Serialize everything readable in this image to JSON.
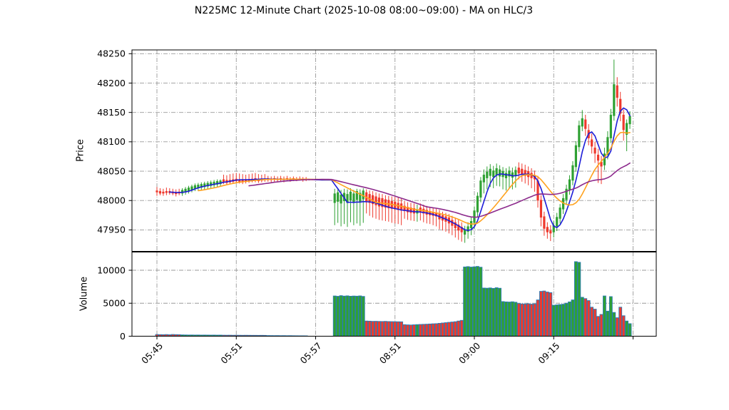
{
  "title": "N225MC 12-Minute Chart (2025-10-08 08:00~09:00) - MA on HLC/3",
  "chart_data": {
    "type": "candlestick_with_volume",
    "title": "N225MC 12-Minute Chart (2025-10-08 08:00~09:00) - MA on HLC/3",
    "grid": true,
    "price_axis": {
      "label": "Price",
      "ticks": [
        47950,
        48000,
        48050,
        48100,
        48150,
        48200,
        48250
      ],
      "range": [
        47913,
        48257
      ]
    },
    "volume_axis": {
      "label": "Volume",
      "ticks": [
        0,
        5000,
        10000
      ],
      "range": [
        0,
        12750
      ]
    },
    "x_axis": {
      "ticks": [
        {
          "index": 0,
          "label": "05:45"
        },
        {
          "index": 25,
          "label": "05:51"
        },
        {
          "index": 50,
          "label": "05:57"
        },
        {
          "index": 75,
          "label": "08:51"
        },
        {
          "index": 100,
          "label": "09:00"
        },
        {
          "index": 125,
          "label": "09:15"
        },
        {
          "index": 150,
          "label": ""
        }
      ]
    },
    "ma_source": "HLC/3",
    "moving_averages": [
      {
        "name": "ma-fast",
        "period": 5,
        "color": "#1d1dd8"
      },
      {
        "name": "ma-medium",
        "period": 14,
        "color": "#ffa21f"
      },
      {
        "name": "ma-slow",
        "period": 30,
        "color": "#8c2a8c"
      }
    ],
    "colors": {
      "up": "#2fa133",
      "down": "#ef392d",
      "doji": "#ef392d",
      "volume_edge": "#2b7bb5",
      "grid": "#9a9a9a",
      "spine": "#000000"
    },
    "candles_format": [
      "open",
      "high",
      "low",
      "close",
      "volume"
    ],
    "candles": [
      [
        48017,
        48023,
        48008,
        48014,
        260
      ],
      [
        48016,
        48021,
        48009,
        48012,
        240
      ],
      [
        48015,
        48020,
        48008,
        48012,
        230
      ],
      [
        48016,
        48022,
        48009,
        48013,
        250
      ],
      [
        48016,
        48021,
        48010,
        48013,
        220
      ],
      [
        48015,
        48020,
        48009,
        48012,
        260
      ],
      [
        48014,
        48019,
        48007,
        48011,
        240
      ],
      [
        48015,
        48020,
        48009,
        48012,
        230
      ],
      [
        48012,
        48021,
        48008,
        48018,
        200
      ],
      [
        48014,
        48023,
        48010,
        48020,
        190
      ],
      [
        48016,
        48025,
        48012,
        48022,
        180
      ],
      [
        48018,
        48027,
        48014,
        48024,
        185
      ],
      [
        48020,
        48029,
        48016,
        48026,
        175
      ],
      [
        48021,
        48030,
        48017,
        48027,
        180
      ],
      [
        48022,
        48031,
        48018,
        48028,
        170
      ],
      [
        48023,
        48032,
        48019,
        48029,
        175
      ],
      [
        48024,
        48033,
        48020,
        48030,
        170
      ],
      [
        48025,
        48034,
        48021,
        48031,
        165
      ],
      [
        48026,
        48035,
        48022,
        48032,
        170
      ],
      [
        48027,
        48036,
        48023,
        48033,
        160
      ],
      [
        48028,
        48036,
        48024,
        48034,
        165
      ],
      [
        48036,
        48044,
        48028,
        48031,
        150
      ],
      [
        48035,
        48043,
        48027,
        48030,
        145
      ],
      [
        48035,
        48045,
        48028,
        48031,
        150
      ],
      [
        48036,
        48046,
        48029,
        48032,
        140
      ],
      [
        48037,
        48047,
        48030,
        48033,
        145
      ],
      [
        48036,
        48046,
        48029,
        48032,
        140
      ],
      [
        48036,
        48045,
        48028,
        48031,
        135
      ],
      [
        48035,
        48044,
        48029,
        48032,
        140
      ],
      [
        48036,
        48045,
        48030,
        48033,
        135
      ],
      [
        48037,
        48046,
        48031,
        48034,
        130
      ],
      [
        48038,
        48047,
        48031,
        48034,
        130
      ],
      [
        48037,
        48045,
        48030,
        48033,
        125
      ],
      [
        48036,
        48044,
        48031,
        48034,
        130
      ],
      [
        48037,
        48045,
        48032,
        48035,
        125
      ],
      [
        48038,
        48042,
        48032,
        48036,
        90
      ],
      [
        48037,
        48041,
        48031,
        48035,
        85
      ],
      [
        48038,
        48042,
        48032,
        48036,
        80
      ],
      [
        48037,
        48041,
        48031,
        48035,
        85
      ],
      [
        48038,
        48042,
        48032,
        48036,
        75
      ],
      [
        48037,
        48041,
        48031,
        48035,
        80
      ],
      [
        48038,
        48042,
        48033,
        48036,
        70
      ],
      [
        48037,
        48040,
        48032,
        48035,
        75
      ],
      [
        48038,
        48041,
        48033,
        48036,
        65
      ],
      [
        48037,
        48040,
        48033,
        48035,
        60
      ],
      [
        48037,
        48041,
        48034,
        48036,
        55
      ],
      [
        48036,
        48040,
        48032,
        48035,
        55
      ],
      [
        48037,
        48040,
        48033,
        48036,
        50
      ],
      [
        48035,
        48035,
        48035,
        48035,
        0
      ],
      [
        48035,
        48035,
        48035,
        48035,
        0
      ],
      [
        48035,
        48035,
        48035,
        48035,
        0
      ],
      [
        48035,
        48035,
        48035,
        48035,
        0
      ],
      [
        48035,
        48035,
        48035,
        48035,
        0
      ],
      [
        48035,
        48035,
        48035,
        48035,
        0
      ],
      [
        48035,
        48035,
        48035,
        48035,
        0
      ],
      [
        48035,
        48035,
        48035,
        48035,
        0
      ],
      [
        47996,
        48020,
        47958,
        48012,
        6100
      ],
      [
        47998,
        48021,
        47962,
        48014,
        6050
      ],
      [
        47995,
        48018,
        47956,
        48010,
        6150
      ],
      [
        47999,
        48020,
        47960,
        48013,
        6080
      ],
      [
        47996,
        48019,
        47955,
        48011,
        6120
      ],
      [
        48000,
        48021,
        47963,
        48015,
        6060
      ],
      [
        47997,
        48018,
        47958,
        48012,
        6090
      ],
      [
        48001,
        48020,
        47961,
        48016,
        6070
      ],
      [
        47998,
        48019,
        47957,
        48013,
        6110
      ],
      [
        48002,
        48021,
        47962,
        48017,
        6030
      ],
      [
        48014,
        48019,
        47978,
        47998,
        2300
      ],
      [
        48011,
        48017,
        47974,
        47996,
        2280
      ],
      [
        48009,
        48016,
        47971,
        47994,
        2250
      ],
      [
        48007,
        48014,
        47969,
        47992,
        2260
      ],
      [
        48005,
        48012,
        47967,
        47990,
        2240
      ],
      [
        48004,
        48011,
        47966,
        47989,
        2230
      ],
      [
        48002,
        48009,
        47965,
        47988,
        2250
      ],
      [
        48001,
        48008,
        47964,
        47987,
        2220
      ],
      [
        47999,
        48007,
        47962,
        47986,
        2210
      ],
      [
        47998,
        48006,
        47961,
        47985,
        2200
      ],
      [
        47996,
        48005,
        47960,
        47984,
        2190
      ],
      [
        47995,
        48003,
        47958,
        47983,
        2180
      ],
      [
        47991,
        47999,
        47969,
        47982,
        1750
      ],
      [
        47989,
        47997,
        47967,
        47980,
        1720
      ],
      [
        47988,
        47996,
        47966,
        47979,
        1700
      ],
      [
        47987,
        47995,
        47965,
        47978,
        1730
      ],
      [
        47978,
        47993,
        47964,
        47984,
        1760
      ],
      [
        47988,
        47995,
        47966,
        47980,
        1780
      ],
      [
        47986,
        47993,
        47963,
        47978,
        1800
      ],
      [
        47984,
        47991,
        47961,
        47976,
        1820
      ],
      [
        47982,
        47989,
        47960,
        47975,
        1850
      ],
      [
        47980,
        47987,
        47958,
        47974,
        1880
      ],
      [
        47979,
        47986,
        47956,
        47973,
        1900
      ],
      [
        47977,
        47984,
        47951,
        47968,
        1950
      ],
      [
        47975,
        47981,
        47949,
        47966,
        2000
      ],
      [
        47973,
        47979,
        47947,
        47964,
        2050
      ],
      [
        47971,
        47977,
        47944,
        47961,
        2100
      ],
      [
        47967,
        47974,
        47941,
        47957,
        2150
      ],
      [
        47963,
        47971,
        47937,
        47953,
        2200
      ],
      [
        47959,
        47967,
        47933,
        47949,
        2300
      ],
      [
        47955,
        47963,
        47930,
        47946,
        2400
      ],
      [
        47942,
        47957,
        47928,
        47950,
        10500
      ],
      [
        47947,
        47963,
        47935,
        47956,
        10550
      ],
      [
        47953,
        47972,
        47941,
        47965,
        10480
      ],
      [
        47962,
        47990,
        47951,
        47983,
        10520
      ],
      [
        47980,
        48014,
        47971,
        48008,
        10580
      ],
      [
        48005,
        48040,
        47997,
        48034,
        10460
      ],
      [
        48031,
        48053,
        48012,
        48044,
        7300
      ],
      [
        48038,
        48058,
        48019,
        48049,
        7280
      ],
      [
        48042,
        48062,
        48023,
        48054,
        7320
      ],
      [
        48040,
        48059,
        48021,
        48051,
        7250
      ],
      [
        48043,
        48063,
        48025,
        48055,
        7350
      ],
      [
        48041,
        48060,
        48024,
        48053,
        7270
      ],
      [
        48040,
        48057,
        48019,
        48050,
        5250
      ],
      [
        48038,
        48055,
        48017,
        48047,
        5200
      ],
      [
        48041,
        48058,
        48021,
        48051,
        5180
      ],
      [
        48039,
        48056,
        48019,
        48048,
        5220
      ],
      [
        48042,
        48058,
        48022,
        48052,
        5150
      ],
      [
        48056,
        48065,
        48036,
        48046,
        4950
      ],
      [
        48054,
        48063,
        48032,
        48044,
        4900
      ],
      [
        48052,
        48061,
        48029,
        48042,
        4880
      ],
      [
        48050,
        48058,
        48026,
        48040,
        4920
      ],
      [
        48047,
        48055,
        48021,
        48038,
        4860
      ],
      [
        48043,
        48051,
        48015,
        48036,
        4900
      ],
      [
        48034,
        48042,
        47988,
        48000,
        5500
      ],
      [
        48001,
        48009,
        47956,
        47971,
        6800
      ],
      [
        47973,
        47981,
        47940,
        47952,
        6850
      ],
      [
        47955,
        47963,
        47935,
        47946,
        6700
      ],
      [
        47949,
        47958,
        47931,
        47944,
        6600
      ],
      [
        47946,
        47965,
        47937,
        47958,
        4700
      ],
      [
        47956,
        47979,
        47948,
        47972,
        4750
      ],
      [
        47969,
        47994,
        47961,
        47988,
        4800
      ],
      [
        47985,
        48011,
        47977,
        48004,
        4850
      ],
      [
        48001,
        48027,
        47993,
        48020,
        5000
      ],
      [
        48018,
        48043,
        48010,
        48036,
        5200
      ],
      [
        48034,
        48067,
        48026,
        48060,
        5500
      ],
      [
        48057,
        48101,
        48049,
        48094,
        11300
      ],
      [
        48091,
        48136,
        48083,
        48128,
        11200
      ],
      [
        48126,
        48154,
        48118,
        48140,
        5900
      ],
      [
        48138,
        48146,
        48110,
        48122,
        5700
      ],
      [
        48120,
        48130,
        48094,
        48106,
        5400
      ],
      [
        48104,
        48114,
        48080,
        48092,
        4400
      ],
      [
        48090,
        48100,
        48064,
        48080,
        4100
      ],
      [
        48078,
        48088,
        48030,
        48068,
        3000
      ],
      [
        48066,
        48076,
        48028,
        48058,
        3300
      ],
      [
        48060,
        48090,
        48052,
        48080,
        6100
      ],
      [
        48078,
        48118,
        48070,
        48108,
        3800
      ],
      [
        48106,
        48156,
        48098,
        48146,
        6000
      ],
      [
        48144,
        48240,
        48136,
        48198,
        3600
      ],
      [
        48196,
        48210,
        48160,
        48175,
        2800
      ],
      [
        48173,
        48185,
        48135,
        48148,
        4400
      ],
      [
        48146,
        48155,
        48102,
        48120,
        3100
      ],
      [
        48112,
        48138,
        48084,
        48132,
        2300
      ],
      [
        48130,
        48152,
        48122,
        48144,
        1900
      ]
    ]
  }
}
